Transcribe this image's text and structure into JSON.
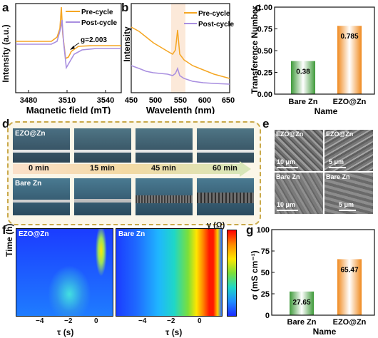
{
  "panels": {
    "a": {
      "label": "a",
      "xlabel": "Magnetic field (mT)",
      "ylabel": "Intensity (a.u.)",
      "xticks": [
        "3480",
        "3510",
        "3540"
      ],
      "legend": [
        "Pre-cycle",
        "Post-cycle"
      ],
      "annotation": "g=2.003"
    },
    "b": {
      "label": "b",
      "xlabel": "Wavelenth (nm)",
      "ylabel": "Intensity",
      "xticks": [
        "450",
        "500",
        "550",
        "600",
        "650"
      ],
      "legend": [
        "Pre-cycle",
        "Post-cycle"
      ]
    },
    "c": {
      "label": "c",
      "xlabel": "Name",
      "ylabel": "Transference Number",
      "yticks": [
        "0.00",
        "0.25",
        "0.50",
        "0.75",
        "1.00"
      ],
      "categories": [
        "Bare Zn",
        "EZO@Zn"
      ],
      "value_labels": [
        "0.38",
        "0.785"
      ]
    },
    "d": {
      "label": "d",
      "row1_label": "EZO@Zn",
      "row2_label": "Bare Zn",
      "times": [
        "0 min",
        "15 min",
        "45 min",
        "60 min"
      ]
    },
    "e": {
      "label": "e",
      "images": [
        {
          "name": "EZO@Zn",
          "scale": "10 μm"
        },
        {
          "name": "EZO@Zn",
          "scale": "5 μm"
        },
        {
          "name": "Bare Zn",
          "scale": "10 μm"
        },
        {
          "name": "Bare Zn",
          "scale": "5 μm"
        }
      ]
    },
    "f": {
      "label": "f",
      "ylabel": "Time (h)",
      "xlabel": "τ (s)",
      "xticks": [
        "−4",
        "−2",
        "0"
      ],
      "maps": [
        "EZO@Zn",
        "Bare Zn"
      ],
      "colorbar_label": "γ (Ω)"
    },
    "g": {
      "label": "g",
      "xlabel": "Name",
      "ylabel": "σ (mS cm⁻¹)",
      "yticks": [
        "0",
        "25",
        "50",
        "75",
        "100"
      ],
      "categories": [
        "Bare Zn",
        "EZO@Zn"
      ],
      "value_labels": [
        "27.65",
        "65.47"
      ]
    }
  },
  "colors": {
    "pre_cycle": "#f5a623",
    "post_cycle": "#a98fe0",
    "bare_bar": "#3f9a3a",
    "ezo_bar": "#f08a1f",
    "frame": "#c9a94a"
  },
  "chart_data": [
    {
      "type": "bar",
      "panel": "c",
      "categories": [
        "Bare Zn",
        "EZO@Zn"
      ],
      "values": [
        0.38,
        0.785
      ],
      "xlabel": "Name",
      "ylabel": "Transference Number",
      "ylim": [
        0,
        1.0
      ]
    },
    {
      "type": "bar",
      "panel": "g",
      "categories": [
        "Bare Zn",
        "EZO@Zn"
      ],
      "values": [
        27.65,
        65.47
      ],
      "xlabel": "Name",
      "ylabel": "σ (mS cm⁻¹)",
      "ylim": [
        0,
        100
      ]
    }
  ]
}
